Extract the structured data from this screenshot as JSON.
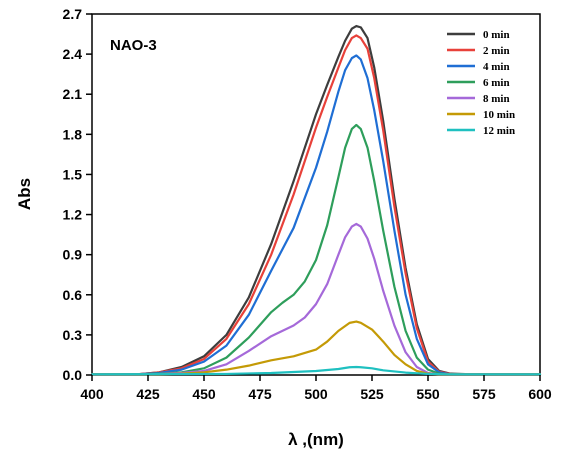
{
  "chart_data": {
    "type": "line",
    "xlabel": "λ ,(nm)",
    "ylabel": "Abs",
    "annotation": "NAO-3",
    "xlim": [
      400,
      600
    ],
    "ylim": [
      0,
      2.7
    ],
    "xticks": [
      "400",
      "425",
      "450",
      "475",
      "500",
      "525",
      "550",
      "575",
      "600"
    ],
    "yticks": [
      "0.0",
      "0.3",
      "0.6",
      "0.9",
      "1.2",
      "1.5",
      "1.8",
      "2.1",
      "2.4",
      "2.7"
    ],
    "grid": false,
    "legend_position": "top-right",
    "series": [
      {
        "name": "0   min",
        "color": "#3d3d3d",
        "peak": 2.61,
        "x": [
          400,
          420,
          430,
          440,
          450,
          460,
          470,
          480,
          490,
          500,
          505,
          510,
          513,
          516,
          518,
          520,
          523,
          526,
          530,
          535,
          540,
          545,
          550,
          555,
          560,
          570,
          580,
          600
        ],
        "y": [
          0.005,
          0.005,
          0.02,
          0.06,
          0.14,
          0.3,
          0.58,
          0.98,
          1.45,
          1.95,
          2.17,
          2.38,
          2.5,
          2.59,
          2.61,
          2.6,
          2.52,
          2.3,
          1.9,
          1.32,
          0.8,
          0.38,
          0.12,
          0.03,
          0.01,
          0.005,
          0.005,
          0.005
        ]
      },
      {
        "name": "2   min",
        "color": "#e8413a",
        "peak": 2.54,
        "x": [
          400,
          420,
          430,
          440,
          450,
          460,
          470,
          480,
          490,
          500,
          505,
          510,
          513,
          516,
          518,
          520,
          523,
          526,
          530,
          535,
          540,
          545,
          550,
          555,
          560,
          570,
          580,
          600
        ],
        "y": [
          0.005,
          0.005,
          0.02,
          0.05,
          0.12,
          0.27,
          0.53,
          0.9,
          1.35,
          1.85,
          2.08,
          2.3,
          2.43,
          2.52,
          2.54,
          2.52,
          2.44,
          2.22,
          1.83,
          1.26,
          0.76,
          0.35,
          0.1,
          0.025,
          0.008,
          0.005,
          0.005,
          0.005
        ]
      },
      {
        "name": "4   min",
        "color": "#1f6ed4",
        "peak": 2.39,
        "x": [
          400,
          420,
          430,
          440,
          450,
          460,
          470,
          480,
          490,
          500,
          505,
          510,
          513,
          516,
          518,
          520,
          523,
          526,
          530,
          535,
          540,
          545,
          550,
          555,
          560,
          570,
          580,
          600
        ],
        "y": [
          0.005,
          0.005,
          0.015,
          0.04,
          0.1,
          0.22,
          0.45,
          0.78,
          1.1,
          1.55,
          1.82,
          2.12,
          2.28,
          2.37,
          2.39,
          2.36,
          2.22,
          1.98,
          1.6,
          1.08,
          0.6,
          0.27,
          0.08,
          0.02,
          0.005,
          0.005,
          0.005,
          0.005
        ]
      },
      {
        "name": "6   min",
        "color": "#2e9e5b",
        "peak": 1.87,
        "x": [
          400,
          420,
          430,
          440,
          450,
          460,
          470,
          480,
          485,
          490,
          495,
          500,
          505,
          510,
          513,
          516,
          518,
          520,
          523,
          526,
          530,
          535,
          540,
          545,
          550,
          555,
          560,
          580,
          600
        ],
        "y": [
          0.005,
          0.005,
          0.01,
          0.02,
          0.05,
          0.13,
          0.28,
          0.47,
          0.54,
          0.6,
          0.7,
          0.86,
          1.12,
          1.48,
          1.7,
          1.84,
          1.87,
          1.84,
          1.7,
          1.45,
          1.08,
          0.66,
          0.33,
          0.13,
          0.04,
          0.01,
          0.005,
          0.005,
          0.005
        ]
      },
      {
        "name": "8   min",
        "color": "#a569d9",
        "peak": 1.13,
        "x": [
          400,
          420,
          430,
          440,
          450,
          460,
          470,
          480,
          485,
          490,
          495,
          500,
          505,
          510,
          513,
          516,
          518,
          520,
          523,
          526,
          530,
          535,
          540,
          545,
          550,
          555,
          560,
          580,
          600
        ],
        "y": [
          0.005,
          0.005,
          0.008,
          0.015,
          0.03,
          0.08,
          0.18,
          0.29,
          0.33,
          0.37,
          0.43,
          0.53,
          0.68,
          0.9,
          1.03,
          1.11,
          1.13,
          1.11,
          1.02,
          0.87,
          0.63,
          0.37,
          0.17,
          0.06,
          0.015,
          0.005,
          0.005,
          0.005,
          0.005
        ]
      },
      {
        "name": "10 min",
        "color": "#c49a06",
        "peak": 0.4,
        "x": [
          400,
          430,
          440,
          450,
          460,
          470,
          480,
          490,
          500,
          505,
          510,
          515,
          518,
          520,
          525,
          530,
          535,
          540,
          545,
          550,
          555,
          560,
          580,
          600
        ],
        "y": [
          0.005,
          0.005,
          0.01,
          0.02,
          0.04,
          0.07,
          0.11,
          0.14,
          0.19,
          0.25,
          0.33,
          0.39,
          0.4,
          0.39,
          0.34,
          0.25,
          0.15,
          0.08,
          0.03,
          0.01,
          0.005,
          0.005,
          0.005,
          0.005
        ]
      },
      {
        "name": "12 min",
        "color": "#1fc0c0",
        "peak": 0.06,
        "x": [
          400,
          460,
          480,
          500,
          510,
          515,
          518,
          520,
          525,
          530,
          540,
          550,
          560,
          600
        ],
        "y": [
          0.005,
          0.008,
          0.015,
          0.03,
          0.045,
          0.058,
          0.06,
          0.058,
          0.05,
          0.035,
          0.018,
          0.008,
          0.005,
          0.005
        ]
      }
    ]
  }
}
